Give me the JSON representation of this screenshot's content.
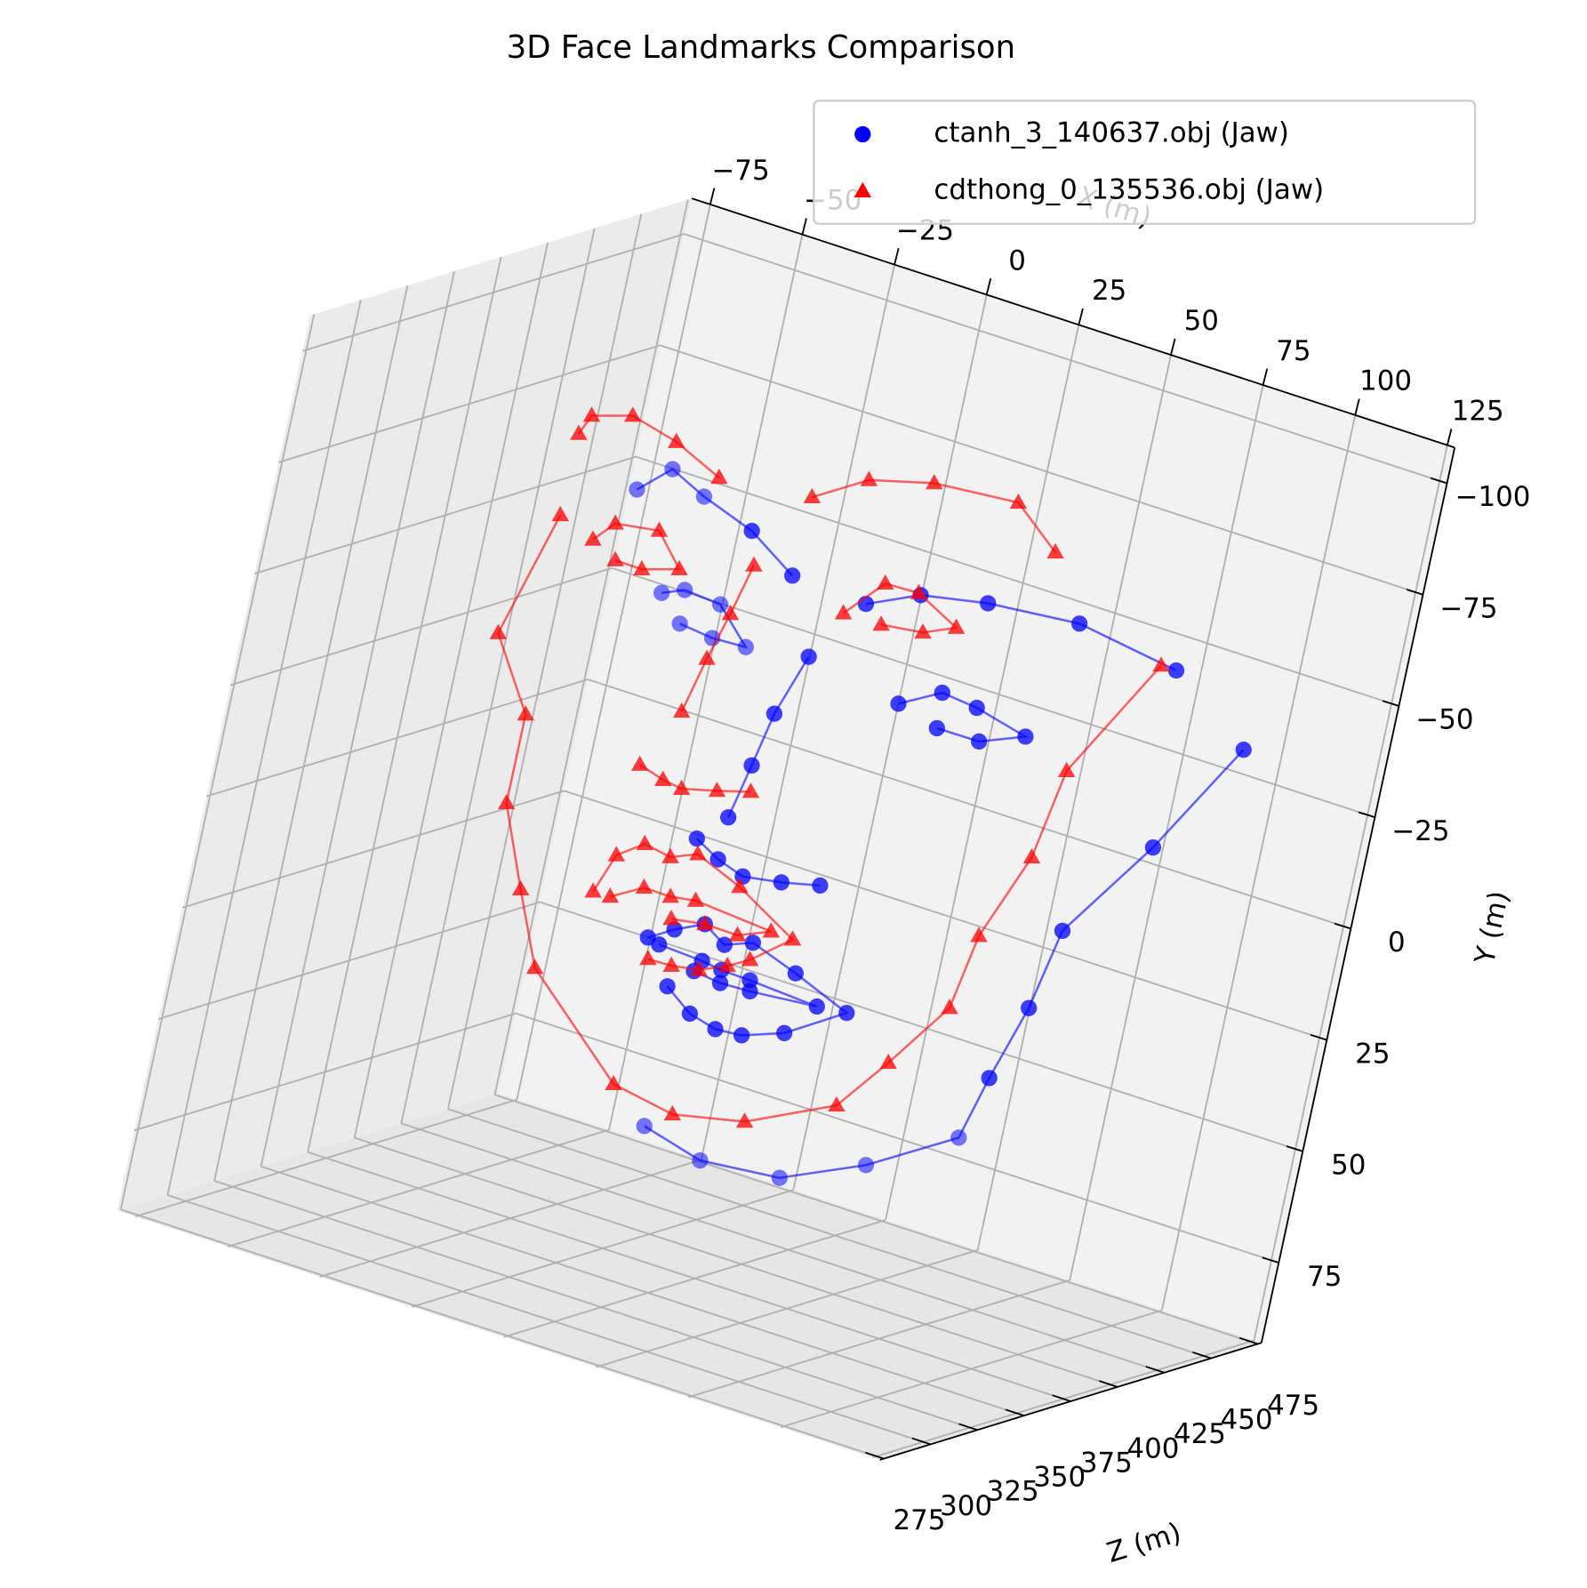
{
  "chart_data": {
    "type": "scatter3d",
    "title": "3D Face Landmarks Comparison",
    "x_label": "X (m)",
    "y_label": "Y (m)",
    "z_label": "Z (m)",
    "xlim": [
      -80,
      127
    ],
    "ylim": [
      -108,
      93
    ],
    "zlim": [
      273,
      477
    ],
    "xticks": [
      {
        "value": -75,
        "label": "−75"
      },
      {
        "value": -50,
        "label": "−50"
      },
      {
        "value": -25,
        "label": "−25"
      },
      0,
      25,
      50,
      75,
      100,
      125
    ],
    "yticks": [
      {
        "value": -100,
        "label": "−100"
      },
      {
        "value": -75,
        "label": "−75"
      },
      {
        "value": -50,
        "label": "−50"
      },
      {
        "value": -25,
        "label": "−25"
      },
      0,
      25,
      50,
      75
    ],
    "zticks": [
      275,
      300,
      325,
      350,
      375,
      400,
      425,
      450,
      475
    ],
    "grid": true,
    "legend": "upper right",
    "series": [
      {
        "name": "ctanh_3_140637.obj (Jaw)",
        "color": "blue",
        "marker": "circle",
        "x": [
          124.1,
          106.5,
          88.1,
          83.8,
          77.6,
          104.1,
          82.1,
          60.9,
          39.8,
          23.8,
          null,
          -12.9,
          -5.0,
          4.5,
          -12.5,
          0.2,
          null,
          20.4,
          33.8,
          51.3,
          75.6,
          102.7,
          null,
          8.8,
          3.2,
          0.3,
          -2.8,
          null,
          -9.6,
          -3.1,
          4.1,
          14.2,
          24.2,
          null,
          -1.0,
          4.7,
          14.5,
          23.3,
          14.3,
          5.3,
          null,
          34.1,
          44.6,
          54.2,
          68.1,
          56.6,
          45.2,
          null,
          -16.6,
          -10.3,
          -2.9,
          3.2,
          10.3,
          22.8,
          37.9,
          23.2,
          12.5,
          5.5,
          -1.8,
          -9.0,
          null,
          -13.4,
          -1.6,
          3.8,
          11.6,
          30.0,
          12.2,
          4.2,
          -3.1
        ],
        "y": [
          -49.3,
          -22.6,
          1.1,
          19.6,
          37.0,
          34.2,
          46.3,
          54.9,
          56.7,
          53.3,
          null,
          -79.7,
          -86.4,
          -82.8,
          -61.5,
          -54.9,
          null,
          -54.0,
          -59.6,
          -62.5,
          -64.5,
          -61.3,
          null,
          -39.0,
          -24.7,
          -12.3,
          0.2,
          null,
          6.8,
          9.7,
          11.6,
          10.2,
          8.2,
          null,
          -59.7,
          -61.9,
          -61.3,
          -54.1,
          -53.7,
          -54.5,
          null,
          -35.3,
          -40.6,
          -39.8,
          -37.1,
          -32.9,
          -32.8,
          null,
          30.9,
          27.4,
          24.2,
          27.2,
          24.8,
          28.3,
          33.1,
          41.6,
          45.0,
          45.5,
          44.0,
          39.8,
          null,
          31.6,
          32.1,
          32.7,
          32.9,
          33.8,
          35.2,
          35.5,
          34.8
        ],
        "z": [
          400,
          400,
          400,
          400,
          400,
          330,
          330,
          330,
          330,
          330,
          null,
          330,
          330,
          330,
          400,
          400,
          null,
          400,
          400,
          400,
          400,
          400,
          null,
          400,
          400,
          400,
          400,
          null,
          400,
          400,
          400,
          400,
          400,
          null,
          330,
          330,
          330,
          330,
          330,
          330,
          null,
          400,
          400,
          400,
          400,
          400,
          400,
          null,
          400,
          400,
          400,
          400,
          400,
          400,
          400,
          400,
          400,
          400,
          400,
          400,
          null,
          400,
          400,
          400,
          400,
          400,
          400,
          400,
          400
        ]
      },
      {
        "name": "cdthong_0_135536.obj (Jaw)",
        "color": "red",
        "marker": "triangle",
        "x": [
          -61.9,
          -71.2,
          -59.8,
          -59.8,
          -51.5,
          -43.6,
          -17.3,
          -0.7,
          18.0,
          40.4,
          51.2,
          63.7,
          67.2,
          76.3,
          80.4,
          98.6,
          null,
          -61.7,
          -59.4,
          -49.0,
          -36.5,
          -23.7,
          null,
          0.9,
          14.4,
          31.1,
          53.5,
          65.6,
          null,
          -10.1,
          -13.4,
          -16.9,
          -20.4,
          null,
          -28.1,
          -21.4,
          -16.2,
          -7.1,
          1.5,
          null,
          -52.3,
          -47.5,
          -36.0,
          -28.8,
          -38.3,
          -45.5,
          null,
          15.2,
          24.2,
          33.2,
          44.6,
          36.4,
          25.4,
          null,
          -33.0,
          -29.1,
          -22.5,
          -15.3,
          -8.5,
          3.9,
          20.2,
          10.5,
          5.1,
          -1.9,
          -9.1,
          -15.4,
          null,
          -28.4,
          -20.3,
          -13.1,
          -6.5,
          14.3,
          6.0,
          -2.9,
          -11.7
        ],
        "y": [
          -51.7,
          -22.7,
          -7.5,
          12.4,
          29.5,
          45.0,
          64.0,
          66.3,
          62.9,
          53.2,
          40.7,
          25.0,
          7.9,
          -12.2,
          -32.7,
          -61.3,
          null,
          -70.0,
          -74.7,
          -77.5,
          -75.0,
          -70.4,
          null,
          -72.7,
          -80.2,
          -84.0,
          -85.7,
          -77.8,
          null,
          -54.4,
          -42.6,
          -31.6,
          -18.8,
          null,
          -4.8,
          -3.2,
          -2.6,
          -4.6,
          -6.7,
          null,
          -48.8,
          -53.7,
          -55.2,
          -48.5,
          -45.9,
          -46.0,
          null,
          -50.5,
          -59.6,
          -59.9,
          -55.2,
          -51.9,
          -50.7,
          null,
          25.0,
          15.8,
          11.5,
          12.5,
          10.0,
          14.0,
          21.4,
          28.6,
          31.4,
          34.2,
          35.2,
          35.4,
          null,
          24.9,
          20.7,
          20.8,
          19.9,
          21.2,
          24.3,
          24.2,
          25.4
        ],
        "z": [
          400,
          400,
          400,
          400,
          400,
          400,
          400,
          400,
          400,
          400,
          400,
          400,
          400,
          400,
          400,
          400,
          null,
          400,
          400,
          400,
          400,
          400,
          null,
          400,
          400,
          400,
          400,
          400,
          null,
          400,
          400,
          400,
          400,
          null,
          400,
          400,
          400,
          400,
          400,
          null,
          400,
          400,
          400,
          400,
          400,
          400,
          null,
          400,
          400,
          400,
          400,
          400,
          400,
          null,
          400,
          400,
          400,
          400,
          400,
          400,
          400,
          400,
          400,
          400,
          400,
          400,
          null,
          400,
          400,
          400,
          400,
          400,
          400,
          400,
          400
        ]
      }
    ]
  }
}
